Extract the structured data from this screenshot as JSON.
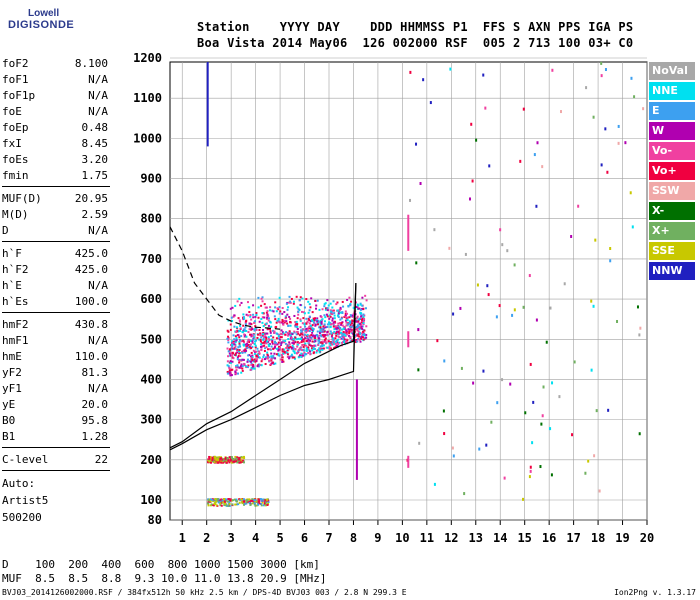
{
  "logo": {
    "brand": "Lowell",
    "name": "DIGISONDE"
  },
  "header": {
    "line1": "Station    YYYY DAY    DDD HHMMSS P1  FFS S AXN PPS IGA PS",
    "line2": "Boa Vista 2014 May06  126 002000 RSF  005 2 713 100 03+ C0"
  },
  "params": [
    [
      {
        "label": "foF2",
        "value": "8.100"
      },
      {
        "label": "foF1",
        "value": "N/A"
      },
      {
        "label": "foF1p",
        "value": "N/A"
      },
      {
        "label": "foE",
        "value": "N/A"
      },
      {
        "label": "foEp",
        "value": "0.48"
      },
      {
        "label": "fxI",
        "value": "8.45"
      },
      {
        "label": "foEs",
        "value": "3.20"
      },
      {
        "label": "fmin",
        "value": "1.75"
      }
    ],
    [
      {
        "label": "MUF(D)",
        "value": "20.95"
      },
      {
        "label": "M(D)",
        "value": "2.59"
      },
      {
        "label": "D",
        "value": "N/A"
      }
    ],
    [
      {
        "label": "h`F",
        "value": "425.0"
      },
      {
        "label": "h`F2",
        "value": "425.0"
      },
      {
        "label": "h`E",
        "value": "N/A"
      },
      {
        "label": "h`Es",
        "value": "100.0"
      }
    ],
    [
      {
        "label": "hmF2",
        "value": "430.8"
      },
      {
        "label": "hmF1",
        "value": "N/A"
      },
      {
        "label": "hmE",
        "value": "110.0"
      },
      {
        "label": "yF2",
        "value": "81.3"
      },
      {
        "label": "yF1",
        "value": "N/A"
      },
      {
        "label": "yE",
        "value": "20.0"
      },
      {
        "label": "B0",
        "value": "95.8"
      },
      {
        "label": "B1",
        "value": "1.28"
      }
    ],
    [
      {
        "label": "C-level",
        "value": "22"
      }
    ]
  ],
  "auto": {
    "line1": "Auto:",
    "line2": "Artist5",
    "line3": "500200"
  },
  "legend": [
    {
      "label": "NoVal",
      "color": "#a8a8a8"
    },
    {
      "label": "NNE",
      "color": "#00e0f0"
    },
    {
      "label": "E",
      "color": "#3da0f0"
    },
    {
      "label": "W",
      "color": "#b000b0"
    },
    {
      "label": "Vo-",
      "color": "#f040a0"
    },
    {
      "label": "Vo+",
      "color": "#f00040"
    },
    {
      "label": "SSW",
      "color": "#f0a8a8"
    },
    {
      "label": "X-",
      "color": "#007000"
    },
    {
      "label": "X+",
      "color": "#70b060"
    },
    {
      "label": "SSE",
      "color": "#c8c800"
    },
    {
      "label": "NNW",
      "color": "#2020c0"
    }
  ],
  "footer": {
    "line1": "D    100  200  400  600  800 1000 1500 3000 [km]",
    "line2": "MUF  8.5  8.5  8.8  9.3 10.0 11.0 13.8 20.9 [MHz]",
    "line3": "BVJ03_2014126002000.RSF / 384fx512h 50 kHz 2.5 km / DPS-4D BVJ03 003 / 2.8 N 299.3 E",
    "version": "Ion2Png v. 1.3.17"
  },
  "chart_data": {
    "type": "scatter",
    "xlim": [
      0.5,
      20
    ],
    "ylim": [
      80,
      1200
    ],
    "xticks": [
      1,
      2,
      3,
      4,
      5,
      6,
      7,
      8,
      9,
      10,
      11,
      12,
      13,
      14,
      15,
      16,
      17,
      18,
      19,
      20
    ],
    "yticks": [
      80,
      100,
      200,
      300,
      400,
      500,
      600,
      700,
      800,
      900,
      1000,
      1100,
      1200
    ],
    "grid": true,
    "legend_position": "right",
    "series": [
      {
        "label": "O-trace virtual height (solid)",
        "style": "solid",
        "x": [
          0.5,
          1,
          2,
          3,
          4,
          5,
          6,
          7,
          7.5,
          8,
          8.1
        ],
        "y": [
          230,
          245,
          290,
          320,
          360,
          400,
          440,
          470,
          485,
          495,
          640
        ]
      },
      {
        "label": "True height profile (solid)",
        "style": "solid",
        "x": [
          0.5,
          1,
          2,
          3,
          4,
          5,
          6,
          7,
          7.5,
          8,
          8.1
        ],
        "y": [
          225,
          240,
          275,
          300,
          330,
          360,
          385,
          400,
          410,
          420,
          640
        ]
      },
      {
        "label": "X-trace (dashed)",
        "style": "dashed",
        "x": [
          0.5,
          1,
          1.5,
          2,
          2.5,
          3,
          3.5,
          4,
          4.5,
          5
        ],
        "y": [
          780,
          720,
          640,
          600,
          560,
          545,
          535,
          530,
          528,
          525
        ]
      }
    ],
    "echo_clusters": [
      {
        "x_range": [
          2.8,
          8.5
        ],
        "y_range": [
          410,
          620
        ],
        "colors": [
          "#f040a0",
          "#00e0f0",
          "#b000b0",
          "#3da0f0",
          "#f00040"
        ]
      },
      {
        "x_range": [
          2,
          4.5
        ],
        "y_range": [
          95,
          105
        ],
        "colors": [
          "#f00040",
          "#3da0f0",
          "#c8c800",
          "#70b060"
        ]
      },
      {
        "x_range": [
          2,
          3.5
        ],
        "y_range": [
          195,
          210
        ],
        "colors": [
          "#f00040",
          "#c8c800",
          "#70b060"
        ]
      }
    ]
  }
}
